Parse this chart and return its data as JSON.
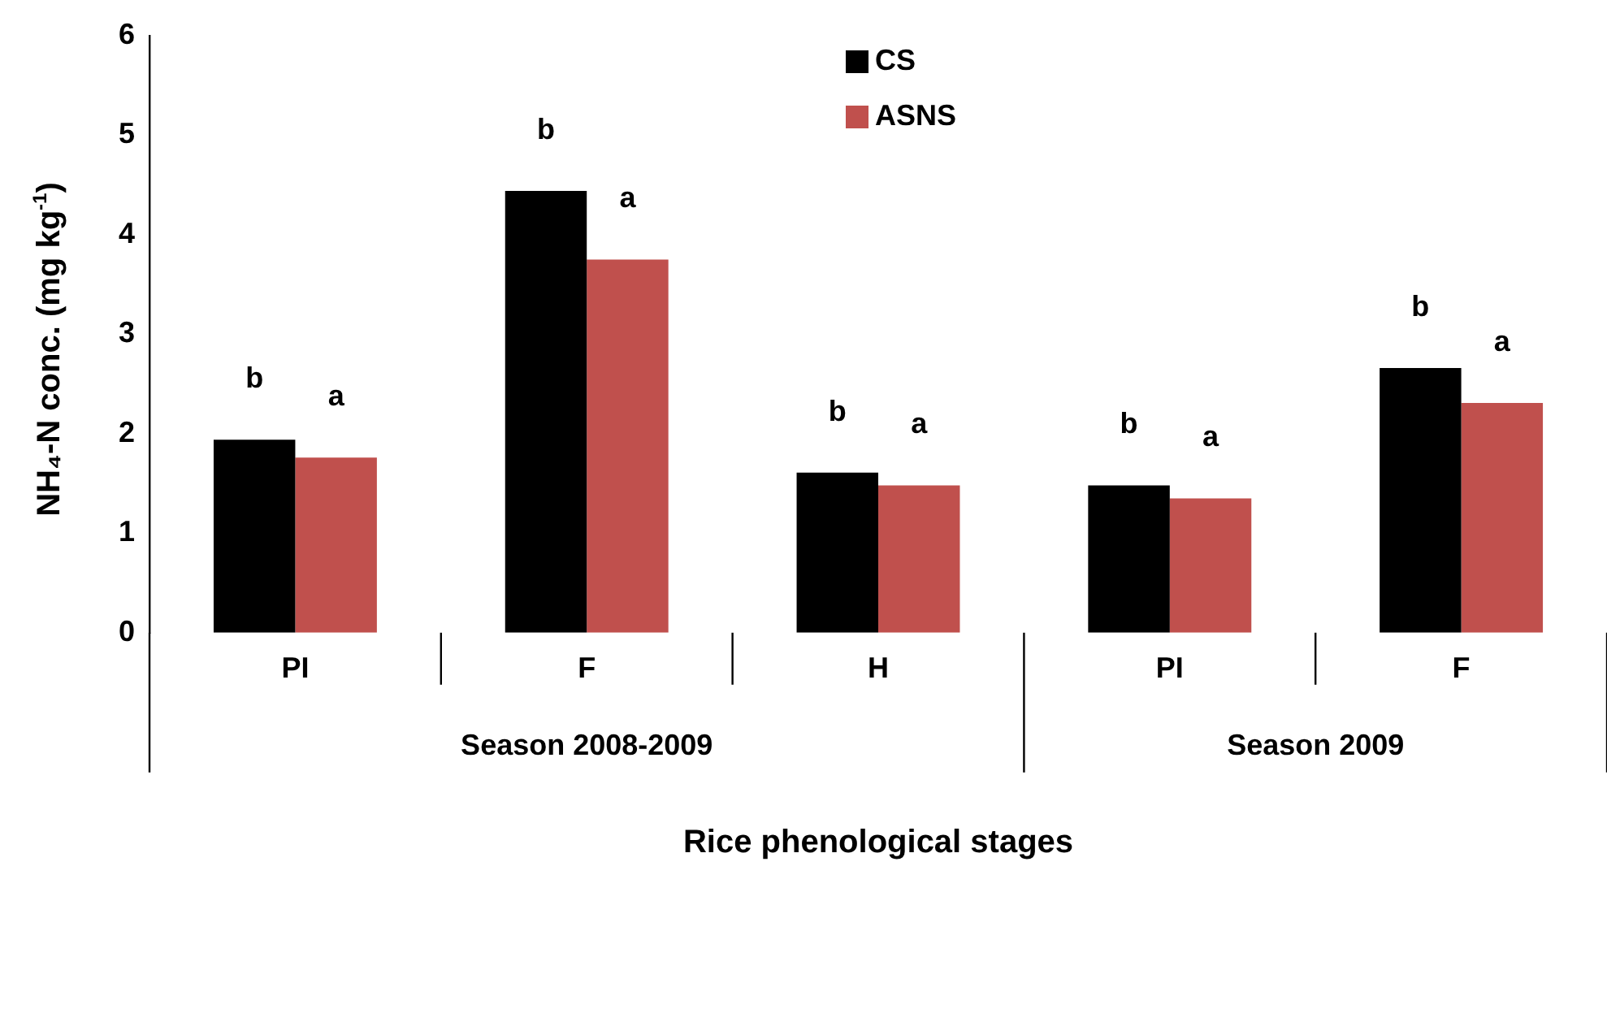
{
  "chart_data": {
    "type": "bar",
    "xlabel": "Rice phenological stages",
    "ylabel": "NH₄-N conc. (mg kg$^{-1}$)",
    "categories": [
      "PI",
      "F",
      "H",
      "PI",
      "F"
    ],
    "series": [
      {
        "name": "CS",
        "color": "#000000",
        "values": [
          1.94,
          4.44,
          1.61,
          1.48,
          2.66
        ],
        "value_labels": [
          "b",
          "b",
          "b",
          "b",
          "b"
        ]
      },
      {
        "name": "ASNS",
        "color": "#c0504d",
        "values": [
          1.76,
          3.75,
          1.48,
          1.35,
          2.31
        ],
        "value_labels": [
          "a",
          "a",
          "a",
          "a",
          "a"
        ]
      }
    ],
    "annotations": [
      "Season 2008-2009",
      "Season 2009"
    ],
    "ylim": [
      0,
      6
    ],
    "yticks": [
      0,
      1,
      2,
      3,
      4,
      5,
      6
    ],
    "grid": false,
    "legend": "top"
  }
}
